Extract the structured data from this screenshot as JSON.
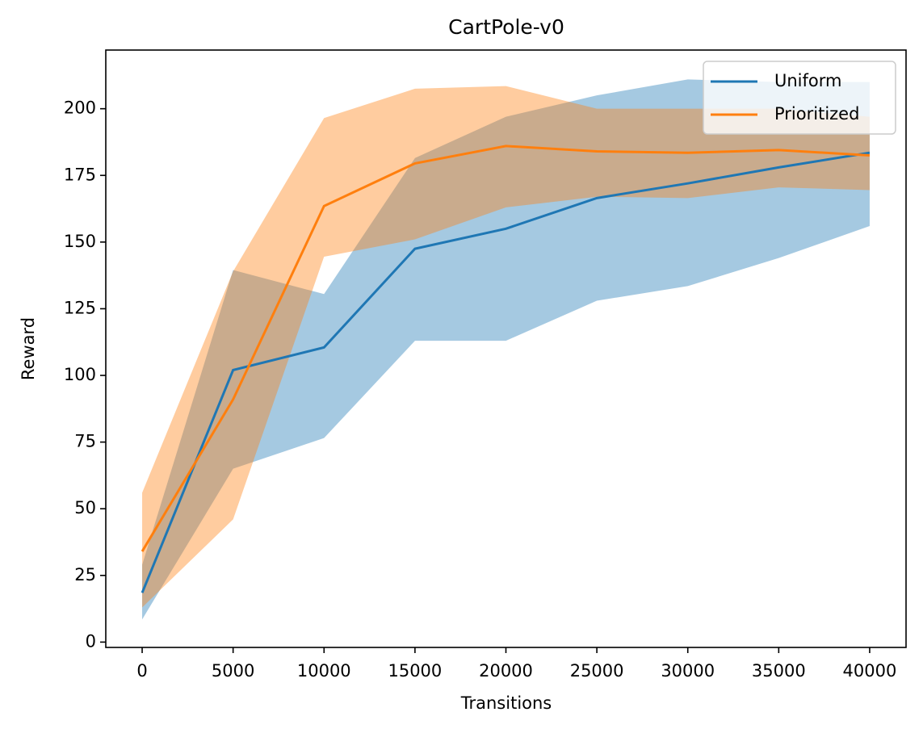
{
  "chart_data": {
    "type": "line",
    "title": "CartPole-v0",
    "x_label": "Transitions",
    "y_label": "Reward",
    "x": [
      0,
      5000,
      10000,
      15000,
      20000,
      25000,
      30000,
      35000,
      40000
    ],
    "series": [
      {
        "name": "Uniform",
        "color": "#1f77b4",
        "values": [
          18.5,
          102,
          110.5,
          147.5,
          155,
          166.5,
          172,
          178,
          183.5
        ],
        "lower": [
          8.5,
          65,
          76.5,
          113,
          113,
          128,
          133.5,
          144,
          156
        ],
        "upper": [
          29,
          139.5,
          130.5,
          181.5,
          197,
          205,
          211,
          210,
          210
        ]
      },
      {
        "name": "Prioritized",
        "color": "#ff7f0e",
        "values": [
          34,
          91,
          163.5,
          179.5,
          186,
          184,
          183.5,
          184.5,
          182.5
        ],
        "lower": [
          13,
          46,
          144.5,
          151,
          163,
          167,
          166.5,
          170.5,
          169.5
        ],
        "upper": [
          56,
          139,
          196.5,
          207.5,
          208.5,
          200,
          200,
          200,
          197
        ]
      }
    ],
    "band_alpha": 0.4,
    "xlim": [
      -2000,
      42000
    ],
    "ylim": [
      -2,
      222
    ],
    "xticks": [
      0,
      5000,
      10000,
      15000,
      20000,
      25000,
      30000,
      35000,
      40000
    ],
    "yticks": [
      0,
      25,
      50,
      75,
      100,
      125,
      150,
      175,
      200
    ],
    "grid": false,
    "legend": "upper right"
  }
}
